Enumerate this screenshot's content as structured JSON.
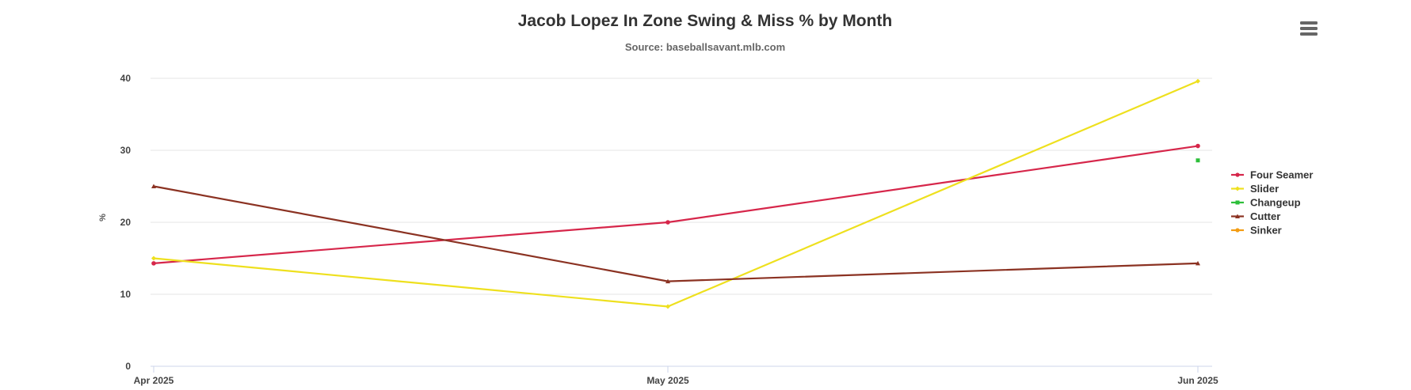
{
  "chart_data": {
    "type": "line",
    "title": "Jacob Lopez In Zone Swing & Miss % by Month",
    "subtitle": "Source: baseballsavant.mlb.com",
    "xlabel": "",
    "ylabel": "%",
    "categories": [
      "Apr 2025",
      "May 2025",
      "Jun 2025"
    ],
    "ylim": [
      0,
      40
    ],
    "yticks": [
      0,
      10,
      20,
      30,
      40
    ],
    "grid": true,
    "legend_position": "right",
    "series": [
      {
        "name": "Four Seamer",
        "color": "#d6264a",
        "marker": "circle",
        "values": [
          14.3,
          20.0,
          30.6
        ]
      },
      {
        "name": "Slider",
        "color": "#eee01e",
        "marker": "diamond",
        "values": [
          15.0,
          8.3,
          39.6
        ]
      },
      {
        "name": "Changeup",
        "color": "#2dbf3a",
        "marker": "square",
        "values": [
          null,
          null,
          28.6
        ]
      },
      {
        "name": "Cutter",
        "color": "#8b3222",
        "marker": "triangle",
        "values": [
          25.0,
          11.8,
          14.3
        ]
      },
      {
        "name": "Sinker",
        "color": "#f39c12",
        "marker": "circle",
        "values": [
          null,
          null,
          null
        ]
      }
    ]
  },
  "menu": {
    "icon": "hamburger-menu-icon"
  }
}
